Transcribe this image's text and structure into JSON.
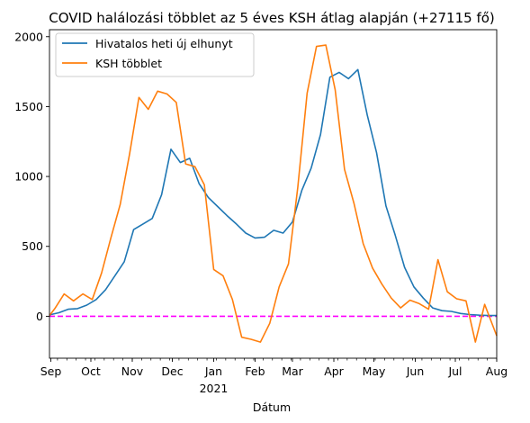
{
  "chart_data": {
    "type": "line",
    "title": "COVID halálozási többlet az 5 éves KSH átlag alapján (+27115 fő)",
    "xlabel": "Dátum",
    "ylabel": "",
    "x_start": "2020-08-31",
    "x_end": "2021-08-01",
    "ylim": [
      -300,
      2050
    ],
    "yticks": [
      0,
      500,
      1000,
      1500,
      2000
    ],
    "xticks": [
      {
        "date": "2020-09-01",
        "label": "Sep",
        "sublabel": ""
      },
      {
        "date": "2020-10-01",
        "label": "Oct",
        "sublabel": ""
      },
      {
        "date": "2020-11-01",
        "label": "Nov",
        "sublabel": ""
      },
      {
        "date": "2020-12-01",
        "label": "Dec",
        "sublabel": ""
      },
      {
        "date": "2021-01-01",
        "label": "Jan",
        "sublabel": "2021"
      },
      {
        "date": "2021-02-01",
        "label": "Feb",
        "sublabel": ""
      },
      {
        "date": "2021-03-01",
        "label": "Mar",
        "sublabel": ""
      },
      {
        "date": "2021-04-01",
        "label": "Apr",
        "sublabel": ""
      },
      {
        "date": "2021-05-01",
        "label": "May",
        "sublabel": ""
      },
      {
        "date": "2021-06-01",
        "label": "Jun",
        "sublabel": ""
      },
      {
        "date": "2021-07-01",
        "label": "Jul",
        "sublabel": ""
      },
      {
        "date": "2021-08-01",
        "label": "Aug",
        "sublabel": ""
      }
    ],
    "legend_position": "upper-left",
    "series": [
      {
        "name": "Hivatalos heti új elhunyt",
        "color": "#1f77b4",
        "x": [
          "2020-08-31",
          "2020-09-07",
          "2020-09-14",
          "2020-09-21",
          "2020-09-28",
          "2020-10-05",
          "2020-10-12",
          "2020-10-19",
          "2020-10-26",
          "2020-11-02",
          "2020-11-09",
          "2020-11-16",
          "2020-11-23",
          "2020-11-30",
          "2020-12-07",
          "2020-12-14",
          "2020-12-21",
          "2020-12-28",
          "2021-01-04",
          "2021-01-11",
          "2021-01-18",
          "2021-01-25",
          "2021-02-01",
          "2021-02-08",
          "2021-02-15",
          "2021-02-22",
          "2021-03-01",
          "2021-03-08",
          "2021-03-15",
          "2021-03-22",
          "2021-03-29",
          "2021-04-05",
          "2021-04-12",
          "2021-04-19",
          "2021-04-26",
          "2021-05-03",
          "2021-05-10",
          "2021-05-17",
          "2021-05-24",
          "2021-05-31",
          "2021-06-07",
          "2021-06-14",
          "2021-06-21",
          "2021-06-28",
          "2021-07-05",
          "2021-07-12",
          "2021-07-19",
          "2021-07-26",
          "2021-08-01"
        ],
        "values": [
          10,
          25,
          50,
          55,
          80,
          120,
          190,
          290,
          390,
          620,
          660,
          700,
          870,
          1195,
          1100,
          1130,
          950,
          850,
          785,
          720,
          660,
          595,
          560,
          565,
          615,
          595,
          675,
          900,
          1060,
          1300,
          1710,
          1745,
          1700,
          1765,
          1440,
          1170,
          790,
          580,
          350,
          210,
          130,
          60,
          40,
          35,
          20,
          12,
          8,
          5,
          5
        ]
      },
      {
        "name": "KSH többlet",
        "color": "#ff7f0e",
        "x": [
          "2020-08-31",
          "2020-09-04",
          "2020-09-11",
          "2020-09-18",
          "2020-09-25",
          "2020-10-02",
          "2020-10-09",
          "2020-10-16",
          "2020-10-23",
          "2020-10-30",
          "2020-11-06",
          "2020-11-13",
          "2020-11-20",
          "2020-11-27",
          "2020-12-04",
          "2020-12-11",
          "2020-12-18",
          "2020-12-25",
          "2021-01-01",
          "2021-01-08",
          "2021-01-15",
          "2021-01-22",
          "2021-01-29",
          "2021-02-05",
          "2021-02-12",
          "2021-02-19",
          "2021-02-26",
          "2021-03-05",
          "2021-03-12",
          "2021-03-19",
          "2021-03-26",
          "2021-04-02",
          "2021-04-09",
          "2021-04-16",
          "2021-04-23",
          "2021-04-30",
          "2021-05-07",
          "2021-05-14",
          "2021-05-21",
          "2021-05-28",
          "2021-06-04",
          "2021-06-11",
          "2021-06-18",
          "2021-06-25",
          "2021-07-02",
          "2021-07-09",
          "2021-07-16",
          "2021-07-23",
          "2021-08-01"
        ],
        "values": [
          5,
          55,
          160,
          110,
          160,
          120,
          310,
          560,
          800,
          1160,
          1565,
          1480,
          1610,
          1590,
          1530,
          1090,
          1070,
          940,
          335,
          290,
          120,
          -150,
          -165,
          -185,
          -50,
          210,
          375,
          920,
          1595,
          1930,
          1940,
          1620,
          1050,
          810,
          520,
          345,
          230,
          130,
          60,
          115,
          90,
          50,
          405,
          175,
          125,
          110,
          -185,
          85,
          -140
        ]
      }
    ],
    "reference_line": {
      "y": 0,
      "color": "#ff00ff",
      "style": "dashed"
    }
  }
}
